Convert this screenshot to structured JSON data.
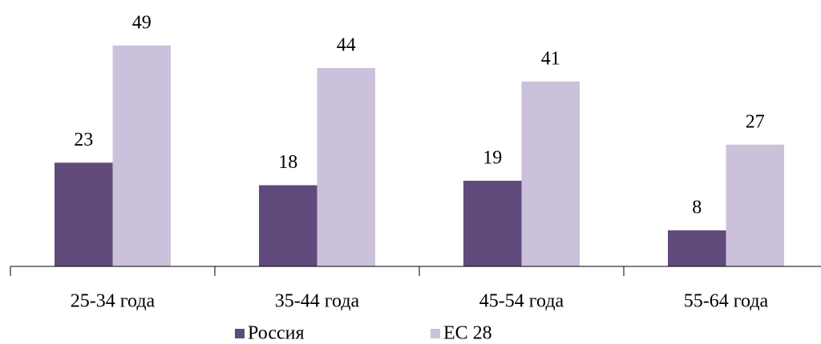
{
  "chart_data": {
    "type": "bar",
    "categories": [
      "25-34 года",
      "35-44 года",
      "45-54 года",
      "55-64 года"
    ],
    "series": [
      {
        "name": "Россия",
        "color": "#604a7b",
        "values": [
          23,
          18,
          19,
          8
        ]
      },
      {
        "name": "ЕС 28",
        "color": "#ccc1da",
        "values": [
          49,
          44,
          41,
          27
        ]
      }
    ],
    "ylim": [
      0,
      55
    ]
  }
}
